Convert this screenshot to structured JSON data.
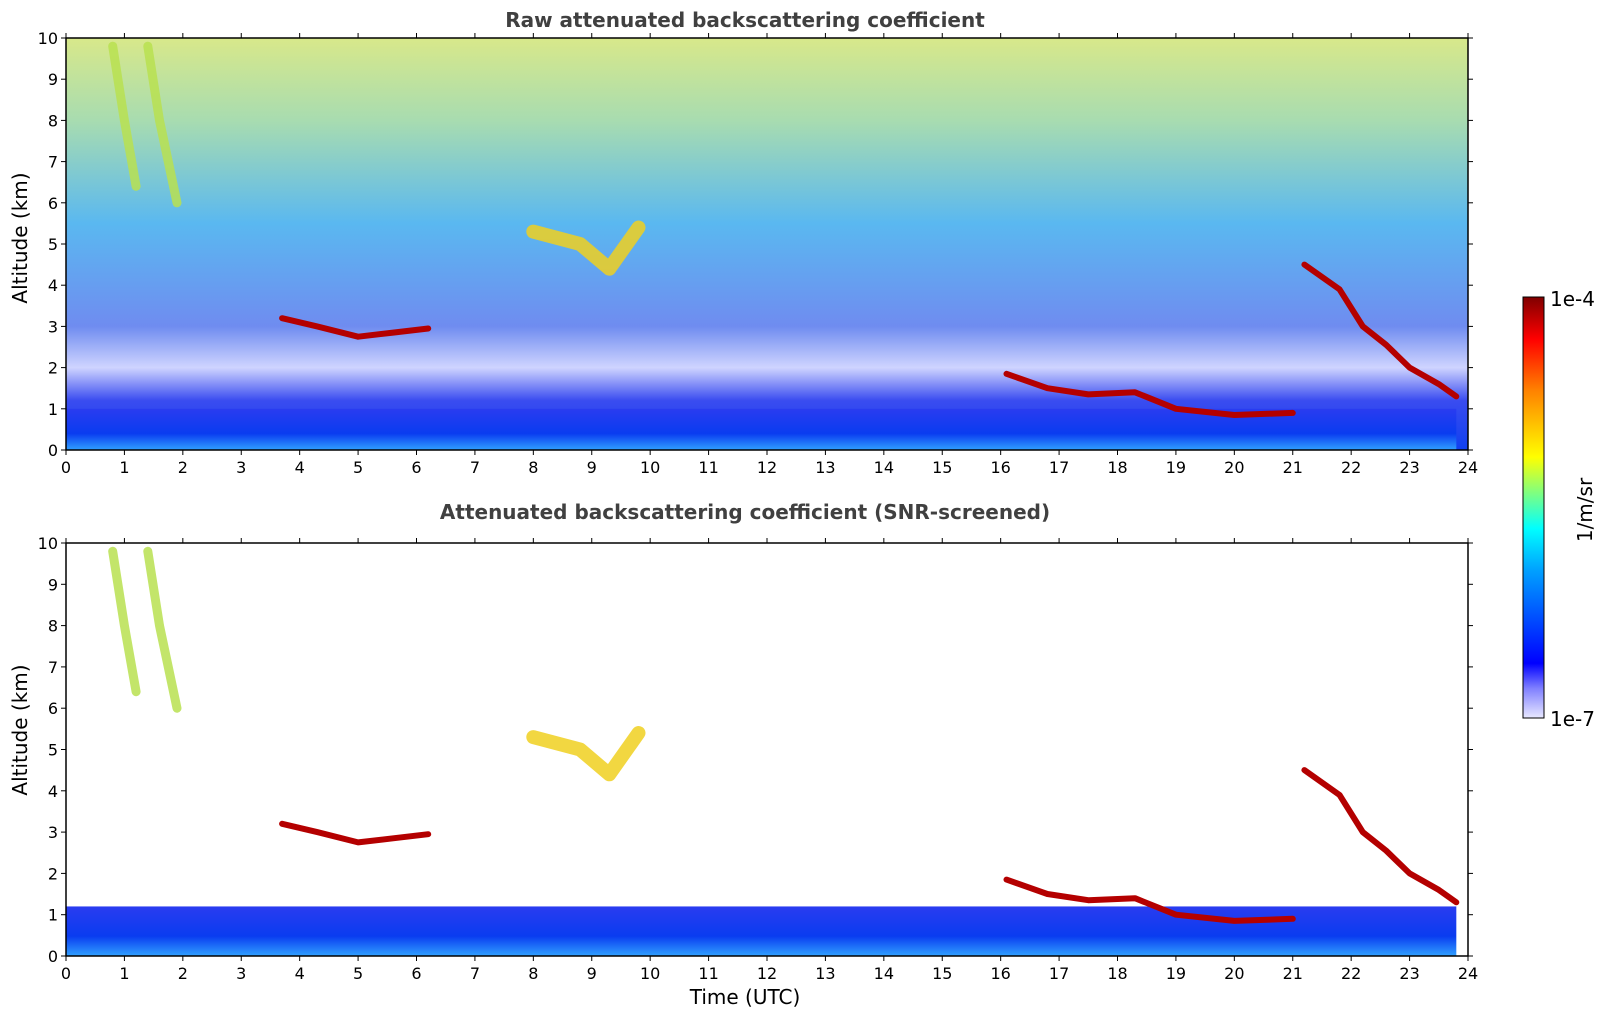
{
  "chart_data": [
    {
      "type": "heatmap",
      "title": "Raw attenuated backscattering coefficient",
      "xlabel": "",
      "ylabel": "Altitude (km)",
      "xlim": [
        0,
        24
      ],
      "ylim": [
        0,
        10
      ],
      "x_ticks": [
        "0",
        "1",
        "2",
        "3",
        "4",
        "5",
        "6",
        "7",
        "8",
        "9",
        "10",
        "11",
        "12",
        "13",
        "14",
        "15",
        "16",
        "17",
        "18",
        "19",
        "20",
        "21",
        "22",
        "23",
        "24"
      ],
      "y_ticks": [
        "0",
        "1",
        "2",
        "3",
        "4",
        "5",
        "6",
        "7",
        "8",
        "9",
        "10"
      ],
      "grid": false,
      "features": [
        {
          "kind": "boundary_layer",
          "x_range": [
            0,
            23.8
          ],
          "altitude_km": [
            0,
            1.0
          ],
          "level": "low"
        },
        {
          "kind": "cloud_layer",
          "points": [
            [
              3.7,
              3.2
            ],
            [
              4.3,
              3.0
            ],
            [
              5.0,
              2.75
            ],
            [
              5.6,
              2.85
            ],
            [
              6.2,
              2.95
            ]
          ],
          "level": "high"
        },
        {
          "kind": "cloud_layer",
          "points": [
            [
              16.1,
              1.85
            ],
            [
              16.8,
              1.5
            ],
            [
              17.5,
              1.35
            ],
            [
              18.3,
              1.4
            ],
            [
              19.0,
              1.0
            ],
            [
              20.0,
              0.85
            ],
            [
              21.0,
              0.9
            ]
          ],
          "level": "high"
        },
        {
          "kind": "cloud_layer",
          "points": [
            [
              21.2,
              4.5
            ],
            [
              21.8,
              3.9
            ],
            [
              22.2,
              3.0
            ],
            [
              22.6,
              2.55
            ],
            [
              23.0,
              2.0
            ],
            [
              23.5,
              1.6
            ],
            [
              23.8,
              1.3
            ]
          ],
          "level": "high"
        },
        {
          "kind": "cirrus_streak",
          "points": [
            [
              0.8,
              9.8
            ],
            [
              1.0,
              8.0
            ],
            [
              1.2,
              6.4
            ]
          ],
          "level": "medium"
        },
        {
          "kind": "cirrus_streak",
          "points": [
            [
              1.4,
              9.8
            ],
            [
              1.6,
              8.0
            ],
            [
              1.9,
              6.0
            ]
          ],
          "level": "medium"
        },
        {
          "kind": "aerosol_plume",
          "points": [
            [
              8.0,
              5.3
            ],
            [
              8.8,
              5.0
            ],
            [
              9.3,
              4.4
            ],
            [
              9.8,
              5.4
            ]
          ],
          "level": "medium"
        }
      ]
    },
    {
      "type": "heatmap",
      "title": "Attenuated backscattering coefficient (SNR-screened)",
      "xlabel": "Time (UTC)",
      "ylabel": "Altitude (km)",
      "xlim": [
        0,
        24
      ],
      "ylim": [
        0,
        10
      ],
      "x_ticks": [
        "0",
        "1",
        "2",
        "3",
        "4",
        "5",
        "6",
        "7",
        "8",
        "9",
        "10",
        "11",
        "12",
        "13",
        "14",
        "15",
        "16",
        "17",
        "18",
        "19",
        "20",
        "21",
        "22",
        "23",
        "24"
      ],
      "y_ticks": [
        "0",
        "1",
        "2",
        "3",
        "4",
        "5",
        "6",
        "7",
        "8",
        "9",
        "10"
      ],
      "grid": false,
      "features": [
        {
          "kind": "boundary_layer",
          "x_range": [
            0,
            23.8
          ],
          "altitude_km": [
            0,
            1.2
          ],
          "level": "low"
        },
        {
          "kind": "cloud_layer",
          "points": [
            [
              3.7,
              3.2
            ],
            [
              4.3,
              3.0
            ],
            [
              5.0,
              2.75
            ],
            [
              5.6,
              2.85
            ],
            [
              6.2,
              2.95
            ]
          ],
          "level": "high"
        },
        {
          "kind": "cloud_layer",
          "points": [
            [
              16.1,
              1.85
            ],
            [
              16.8,
              1.5
            ],
            [
              17.5,
              1.35
            ],
            [
              18.3,
              1.4
            ],
            [
              19.0,
              1.0
            ],
            [
              20.0,
              0.85
            ],
            [
              21.0,
              0.9
            ]
          ],
          "level": "high"
        },
        {
          "kind": "cloud_layer",
          "points": [
            [
              21.2,
              4.5
            ],
            [
              21.8,
              3.9
            ],
            [
              22.2,
              3.0
            ],
            [
              22.6,
              2.55
            ],
            [
              23.0,
              2.0
            ],
            [
              23.5,
              1.6
            ],
            [
              23.8,
              1.3
            ]
          ],
          "level": "high"
        },
        {
          "kind": "cirrus_streak",
          "points": [
            [
              0.8,
              9.8
            ],
            [
              1.0,
              8.0
            ],
            [
              1.2,
              6.4
            ]
          ],
          "level": "medium"
        },
        {
          "kind": "cirrus_streak",
          "points": [
            [
              1.4,
              9.8
            ],
            [
              1.6,
              8.0
            ],
            [
              1.9,
              6.0
            ]
          ],
          "level": "medium"
        },
        {
          "kind": "aerosol_plume",
          "points": [
            [
              8.0,
              5.3
            ],
            [
              8.8,
              5.0
            ],
            [
              9.3,
              4.4
            ],
            [
              9.8,
              5.4
            ]
          ],
          "level": "medium"
        }
      ]
    }
  ],
  "colorbar": {
    "max_label": "1e-4",
    "min_label": "1e-7",
    "unit_label": "1/m/sr",
    "colors": [
      "#ffffff",
      "#c8c8ff",
      "#0000ff",
      "#0080ff",
      "#00ffff",
      "#80ff80",
      "#ffff00",
      "#ff8000",
      "#ff0000",
      "#800000"
    ]
  }
}
